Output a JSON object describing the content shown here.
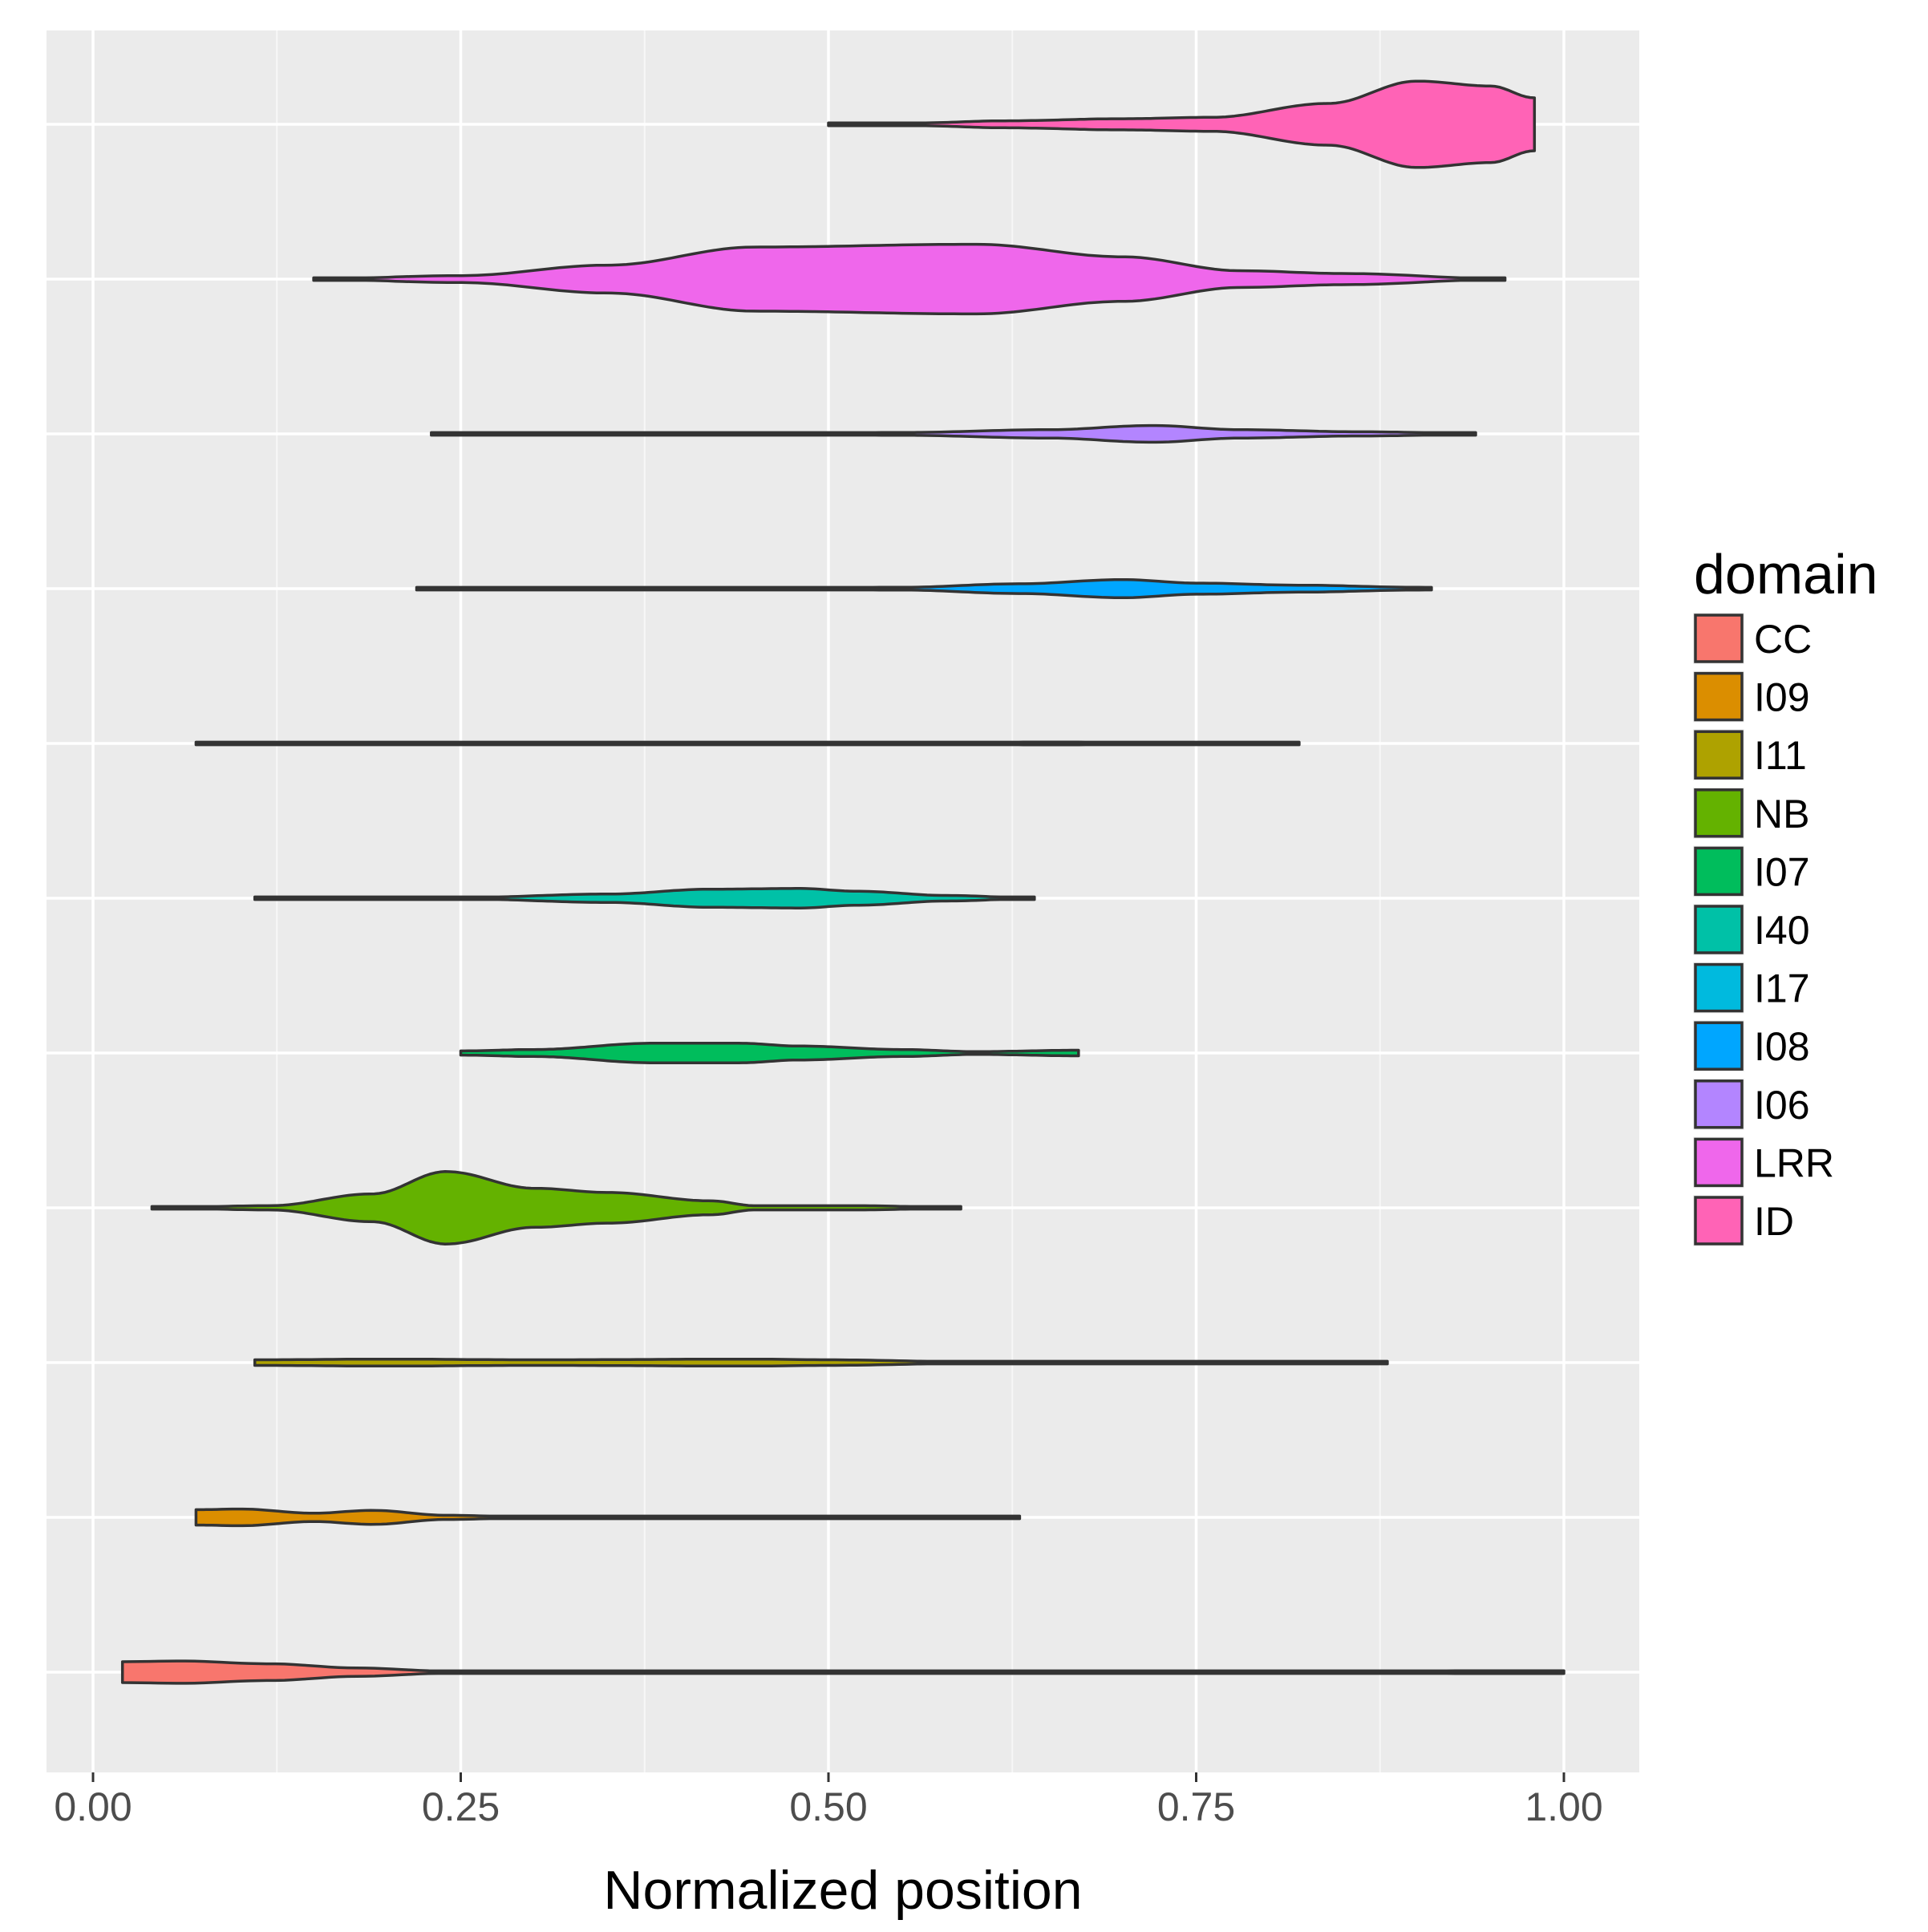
{
  "chart_data": {
    "type": "violin",
    "orientation": "horizontal",
    "xlabel": "Normalized position",
    "ylabel": "",
    "xlim": [
      -0.03,
      1.05
    ],
    "x_ticks": [
      0.0,
      0.25,
      0.5,
      0.75,
      1.0
    ],
    "x_tick_labels": [
      "0.00",
      "0.25",
      "0.50",
      "0.75",
      "1.00"
    ],
    "y_tick_labels_shown": false,
    "grid": true,
    "legend": {
      "title": "domain",
      "position": "right"
    },
    "categories": [
      "CC",
      "I09",
      "I11",
      "NB",
      "I07",
      "I40",
      "I17",
      "I08",
      "I06",
      "LRR",
      "ID"
    ],
    "colors": {
      "CC": "#F8766D",
      "I09": "#DB8E00",
      "I11": "#AEA200",
      "NB": "#64B200",
      "I07": "#00BD5C",
      "I40": "#00C1A7",
      "I17": "#00BADE",
      "I08": "#00A6FF",
      "I06": "#B385FF",
      "LRR": "#EF67EB",
      "ID": "#FF63B6"
    },
    "series": [
      {
        "name": "CC",
        "min": 0.02,
        "max": 1.0,
        "half_width": [
          [
            0.02,
            0.15
          ],
          [
            0.06,
            0.16
          ],
          [
            0.12,
            0.12
          ],
          [
            0.18,
            0.06
          ],
          [
            0.24,
            0.015
          ],
          [
            0.5,
            0.008
          ],
          [
            0.8,
            0.008
          ],
          [
            0.95,
            0.02
          ],
          [
            1.0,
            0.02
          ]
        ]
      },
      {
        "name": "I09",
        "min": 0.07,
        "max": 0.63,
        "half_width": [
          [
            0.07,
            0.11
          ],
          [
            0.1,
            0.12
          ],
          [
            0.15,
            0.06
          ],
          [
            0.19,
            0.1
          ],
          [
            0.24,
            0.03
          ],
          [
            0.3,
            0.005
          ],
          [
            0.63,
            0.003
          ]
        ]
      },
      {
        "name": "I11",
        "min": 0.11,
        "max": 0.88,
        "half_width": [
          [
            0.11,
            0.04
          ],
          [
            0.2,
            0.05
          ],
          [
            0.3,
            0.04
          ],
          [
            0.45,
            0.05
          ],
          [
            0.5,
            0.04
          ],
          [
            0.6,
            0.01
          ],
          [
            0.7,
            0.005
          ],
          [
            0.88,
            0.003
          ]
        ]
      },
      {
        "name": "NB",
        "min": 0.04,
        "max": 0.59,
        "half_width": [
          [
            0.04,
            0.003
          ],
          [
            0.12,
            0.03
          ],
          [
            0.19,
            0.2
          ],
          [
            0.24,
            0.52
          ],
          [
            0.3,
            0.28
          ],
          [
            0.35,
            0.22
          ],
          [
            0.42,
            0.1
          ],
          [
            0.45,
            0.03
          ],
          [
            0.52,
            0.03
          ],
          [
            0.59,
            0.005
          ]
        ]
      },
      {
        "name": "I07",
        "min": 0.25,
        "max": 0.67,
        "half_width": [
          [
            0.25,
            0.03
          ],
          [
            0.3,
            0.05
          ],
          [
            0.38,
            0.14
          ],
          [
            0.44,
            0.14
          ],
          [
            0.48,
            0.1
          ],
          [
            0.55,
            0.05
          ],
          [
            0.6,
            0.02
          ],
          [
            0.67,
            0.04
          ]
        ]
      },
      {
        "name": "I40",
        "min": 0.11,
        "max": 0.64,
        "half_width": [
          [
            0.11,
            0.005
          ],
          [
            0.25,
            0.01
          ],
          [
            0.35,
            0.06
          ],
          [
            0.42,
            0.13
          ],
          [
            0.48,
            0.14
          ],
          [
            0.52,
            0.1
          ],
          [
            0.58,
            0.04
          ],
          [
            0.64,
            0.005
          ]
        ]
      },
      {
        "name": "I17",
        "min": 0.07,
        "max": 0.82,
        "half_width": [
          [
            0.07,
            0.01
          ],
          [
            0.3,
            0.005
          ],
          [
            0.55,
            0.01
          ],
          [
            0.65,
            0.02
          ],
          [
            0.72,
            0.015
          ],
          [
            0.82,
            0.005
          ]
        ]
      },
      {
        "name": "I08",
        "min": 0.22,
        "max": 0.91,
        "half_width": [
          [
            0.22,
            0.003
          ],
          [
            0.45,
            0.005
          ],
          [
            0.55,
            0.02
          ],
          [
            0.63,
            0.07
          ],
          [
            0.7,
            0.13
          ],
          [
            0.75,
            0.08
          ],
          [
            0.82,
            0.05
          ],
          [
            0.9,
            0.02
          ],
          [
            0.91,
            0.01
          ]
        ]
      },
      {
        "name": "I06",
        "min": 0.23,
        "max": 0.94,
        "half_width": [
          [
            0.23,
            0.003
          ],
          [
            0.45,
            0.005
          ],
          [
            0.55,
            0.02
          ],
          [
            0.65,
            0.06
          ],
          [
            0.72,
            0.12
          ],
          [
            0.78,
            0.06
          ],
          [
            0.86,
            0.03
          ],
          [
            0.94,
            0.01
          ]
        ]
      },
      {
        "name": "LRR",
        "min": 0.15,
        "max": 0.96,
        "half_width": [
          [
            0.15,
            0.003
          ],
          [
            0.25,
            0.05
          ],
          [
            0.35,
            0.2
          ],
          [
            0.45,
            0.46
          ],
          [
            0.6,
            0.5
          ],
          [
            0.7,
            0.32
          ],
          [
            0.78,
            0.12
          ],
          [
            0.85,
            0.08
          ],
          [
            0.96,
            0.005
          ]
        ]
      },
      {
        "name": "ID",
        "min": 0.5,
        "max": 0.98,
        "half_width": [
          [
            0.5,
            0.02
          ],
          [
            0.56,
            0.02
          ],
          [
            0.62,
            0.05
          ],
          [
            0.7,
            0.08
          ],
          [
            0.76,
            0.1
          ],
          [
            0.84,
            0.3
          ],
          [
            0.9,
            0.62
          ],
          [
            0.95,
            0.55
          ],
          [
            0.98,
            0.38
          ]
        ]
      }
    ]
  }
}
